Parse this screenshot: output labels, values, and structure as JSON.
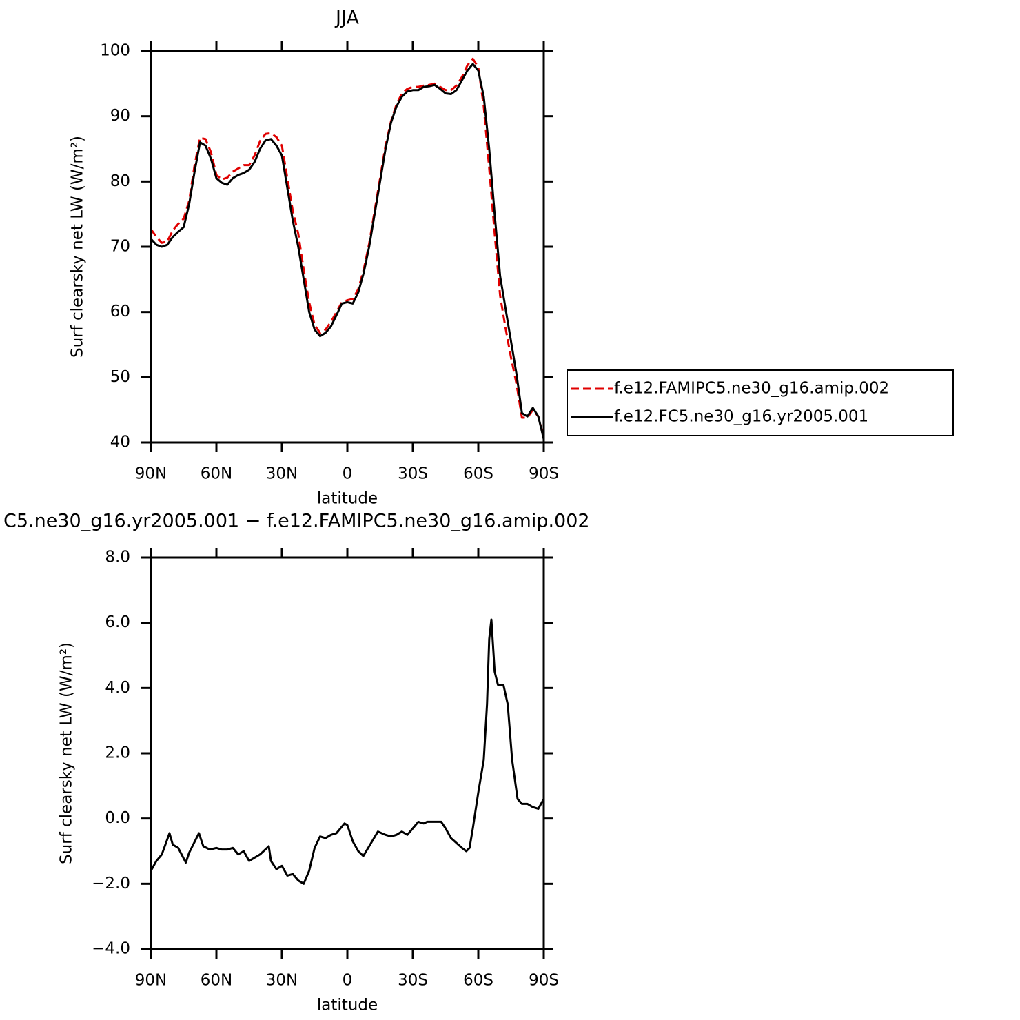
{
  "chart_data": [
    {
      "type": "line",
      "title": "JJA",
      "xlabel": "latitude",
      "ylabel": "Surf clearsky net LW (W/m²)",
      "xlim": [
        90,
        -90
      ],
      "xticks": [
        {
          "value": 90,
          "label": "90N"
        },
        {
          "value": 60,
          "label": "60N"
        },
        {
          "value": 30,
          "label": "30N"
        },
        0,
        {
          "value": -30,
          "label": "30S"
        },
        {
          "value": -60,
          "label": "60S"
        },
        {
          "value": -90,
          "label": "90S"
        }
      ],
      "ylim": [
        40,
        100
      ],
      "yticks": [
        40,
        50,
        60,
        70,
        80,
        90,
        100
      ],
      "legend": "right",
      "x": [
        90,
        87.5,
        85,
        82.5,
        80,
        77.5,
        75,
        72.5,
        70,
        67.5,
        65,
        62.5,
        60,
        57.5,
        55,
        52.5,
        50,
        47.5,
        45,
        42.5,
        40,
        37.5,
        35,
        32.5,
        30,
        27.5,
        25,
        22.5,
        20,
        17.5,
        15,
        12.5,
        10,
        7.5,
        5,
        2.5,
        0,
        -2.5,
        -5,
        -7.5,
        -10,
        -12.5,
        -15,
        -17.5,
        -20,
        -22.5,
        -25,
        -27.5,
        -30,
        -32.5,
        -35,
        -37.5,
        -40,
        -42.5,
        -45,
        -47.5,
        -50,
        -52.5,
        -55,
        -57.5,
        -60,
        -62.5,
        -65,
        -67.5,
        -70,
        -72.5,
        -75,
        -77.5,
        -80,
        -82.5,
        -85,
        -87.5,
        -90
      ],
      "series": [
        {
          "name": "f.e12.FAMIPC5.ne30_g16.amip.002",
          "color": "#e00000",
          "dash": true,
          "values": [
            72.7,
            71.5,
            70.6,
            70.8,
            72.5,
            73.5,
            74.3,
            77.0,
            82.5,
            86.7,
            86.5,
            84.5,
            81.0,
            80.3,
            80.6,
            81.5,
            82.0,
            82.5,
            82.5,
            84.0,
            86.2,
            87.3,
            87.4,
            86.8,
            85.5,
            80.5,
            75.5,
            72.0,
            66.5,
            61.5,
            58.0,
            56.8,
            57.3,
            58.5,
            60.0,
            61.5,
            61.8,
            62.0,
            63.5,
            66.5,
            70.5,
            75.5,
            80.5,
            85.5,
            89.2,
            91.8,
            93.5,
            94.2,
            94.5,
            94.5,
            94.7,
            94.8,
            95.0,
            94.5,
            94.0,
            94.0,
            94.7,
            96.0,
            97.8,
            98.8,
            97.5,
            91.5,
            82.0,
            72.0,
            62.5,
            57.5,
            53.0,
            49.0,
            43.8,
            43.8,
            45.0,
            44.0,
            40.8
          ]
        },
        {
          "name": "f.e12.FC5.ne30_g16.yr2005.001",
          "color": "#000000",
          "dash": false,
          "values": [
            71.2,
            70.3,
            70.0,
            70.3,
            71.5,
            72.3,
            73.0,
            76.5,
            81.5,
            86.0,
            85.5,
            83.5,
            80.5,
            79.8,
            79.5,
            80.5,
            81.0,
            81.3,
            81.8,
            83.0,
            85.0,
            86.3,
            86.5,
            85.5,
            84.0,
            79.0,
            74.0,
            70.0,
            65.0,
            60.0,
            57.3,
            56.3,
            56.8,
            57.8,
            59.5,
            61.3,
            61.5,
            61.3,
            63.0,
            66.0,
            70.0,
            75.0,
            80.0,
            85.0,
            89.0,
            91.5,
            93.0,
            93.8,
            94.0,
            94.0,
            94.5,
            94.6,
            94.8,
            94.2,
            93.5,
            93.4,
            94.0,
            95.5,
            97.0,
            98.0,
            97.0,
            93.0,
            85.0,
            75.0,
            65.5,
            60.5,
            55.5,
            50.5,
            44.5,
            44.0,
            45.3,
            44.0,
            40.5
          ]
        }
      ]
    },
    {
      "type": "line",
      "title": "C5.ne30_g16.yr2005.001 − f.e12.FAMIPC5.ne30_g16.amip.002",
      "xlabel": "latitude",
      "ylabel": "Surf clearsky net LW (W/m²)",
      "xlim": [
        90,
        -90
      ],
      "xticks": [
        {
          "value": 90,
          "label": "90N"
        },
        {
          "value": 60,
          "label": "60N"
        },
        {
          "value": 30,
          "label": "30N"
        },
        0,
        {
          "value": -30,
          "label": "30S"
        },
        {
          "value": -60,
          "label": "60S"
        },
        {
          "value": -90,
          "label": "90S"
        }
      ],
      "ylim": [
        -4,
        8
      ],
      "yticks": [
        {
          "value": -4,
          "label": "−4.0"
        },
        {
          "value": -2,
          "label": "−2.0"
        },
        {
          "value": 0,
          "label": "0.0"
        },
        {
          "value": 2,
          "label": "2.0"
        },
        {
          "value": 4,
          "label": "4.0"
        },
        {
          "value": 6,
          "label": "6.0"
        },
        {
          "value": 8,
          "label": "8.0"
        }
      ],
      "x": [
        90,
        87.5,
        85,
        81.5,
        80,
        77.5,
        74,
        72.5,
        68,
        66,
        63,
        60,
        57.5,
        55,
        52.5,
        50,
        47.5,
        45,
        42.5,
        40,
        36,
        35,
        32.5,
        30,
        27.5,
        25,
        22.5,
        20,
        17.5,
        15,
        12.5,
        10,
        7.5,
        5,
        1.3,
        0,
        -2.5,
        -5,
        -7.3,
        -10,
        -14,
        -17.5,
        -20,
        -22.5,
        -25,
        -27.5,
        -30,
        -32.5,
        -35,
        -36.6,
        -40,
        -43,
        -45,
        -47.5,
        -50,
        -52.5,
        -54.5,
        -56,
        -57.5,
        -60,
        -62.5,
        -64,
        -65,
        -66,
        -67.5,
        -69,
        -71.5,
        -73.5,
        -75.5,
        -78,
        -80,
        -82.5,
        -85,
        -87.5,
        -90
      ],
      "series": [
        {
          "name": "diff",
          "color": "#000000",
          "dash": false,
          "values": [
            -1.6,
            -1.3,
            -1.1,
            -0.45,
            -0.8,
            -0.9,
            -1.35,
            -1.05,
            -0.45,
            -0.85,
            -0.95,
            -0.9,
            -0.95,
            -0.95,
            -0.9,
            -1.1,
            -1.0,
            -1.3,
            -1.2,
            -1.1,
            -0.85,
            -1.3,
            -1.55,
            -1.45,
            -1.75,
            -1.7,
            -1.9,
            -2.0,
            -1.6,
            -0.9,
            -0.55,
            -0.6,
            -0.5,
            -0.45,
            -0.15,
            -0.2,
            -0.7,
            -1.0,
            -1.15,
            -0.85,
            -0.4,
            -0.5,
            -0.55,
            -0.5,
            -0.4,
            -0.5,
            -0.3,
            -0.1,
            -0.15,
            -0.1,
            -0.1,
            -0.1,
            -0.3,
            -0.6,
            -0.75,
            -0.9,
            -1.0,
            -0.9,
            -0.3,
            0.8,
            1.8,
            3.5,
            5.5,
            6.1,
            4.5,
            4.1,
            4.1,
            3.5,
            1.8,
            0.6,
            0.45,
            0.45,
            0.35,
            0.3,
            0.6
          ]
        }
      ]
    }
  ]
}
